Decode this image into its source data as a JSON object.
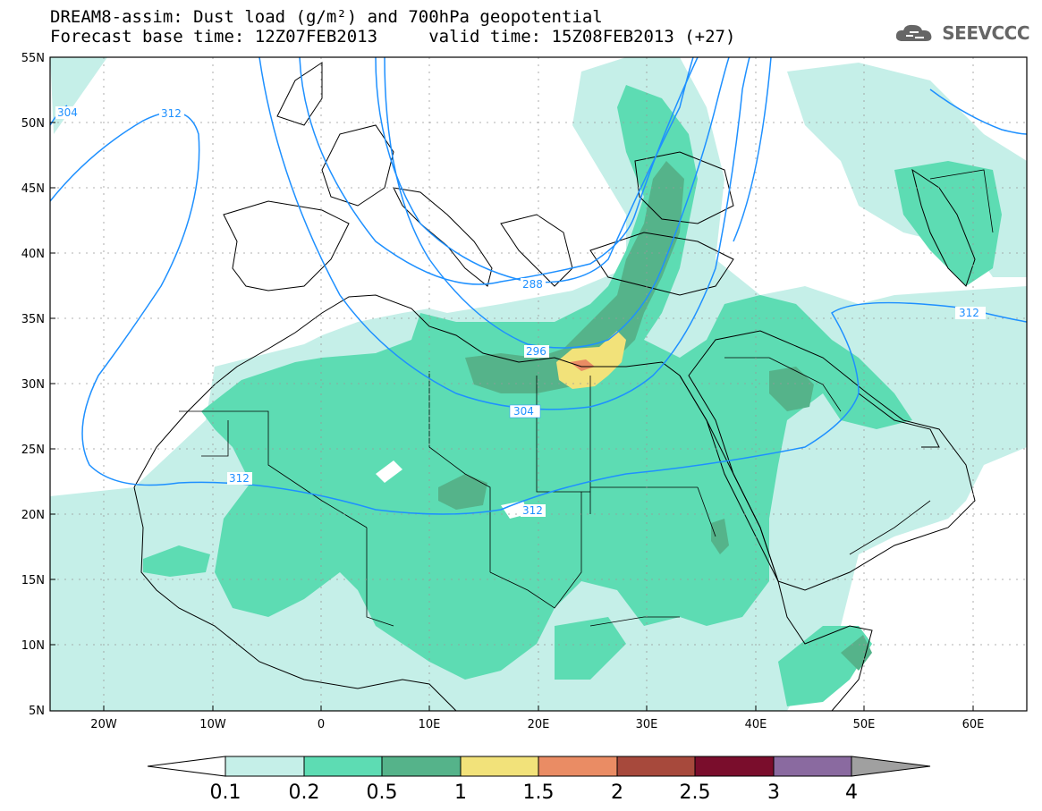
{
  "title": {
    "line1": "DREAM8-assim: Dust load (g/m²) and 700hPa geopotential",
    "line2": "Forecast base time: 12Z07FEB2013     valid time: 15Z08FEB2013 (+27)"
  },
  "logo": {
    "text": "SEEVCCC",
    "icon": "cloud-icon"
  },
  "axes": {
    "lat_labels": [
      "55N",
      "50N",
      "45N",
      "40N",
      "35N",
      "30N",
      "25N",
      "20N",
      "15N",
      "10N",
      "5N"
    ],
    "lon_labels": [
      "20W",
      "10W",
      "0",
      "10E",
      "20E",
      "30E",
      "40E",
      "50E",
      "60E"
    ]
  },
  "contours": [
    "304",
    "312",
    "288",
    "296",
    "304",
    "312",
    "312",
    "312"
  ],
  "colorbar": {
    "labels": [
      "0.1",
      "0.2",
      "0.5",
      "1",
      "1.5",
      "2",
      "2.5",
      "3",
      "4"
    ],
    "colors": [
      "#c5efe8",
      "#5ddcb3",
      "#55b38a",
      "#f2e27a",
      "#ea8c64",
      "#a7493c",
      "#7a0d2c",
      "#8a6aa0",
      "#a0a0a0"
    ]
  },
  "colors": {
    "dust_light": "#c5efe8",
    "dust_mid": "#5ddcb3",
    "dust_dark": "#55b38a",
    "dust_yellow": "#f2e27a",
    "dust_orange": "#ea8c64",
    "contour": "#1e90ff"
  }
}
